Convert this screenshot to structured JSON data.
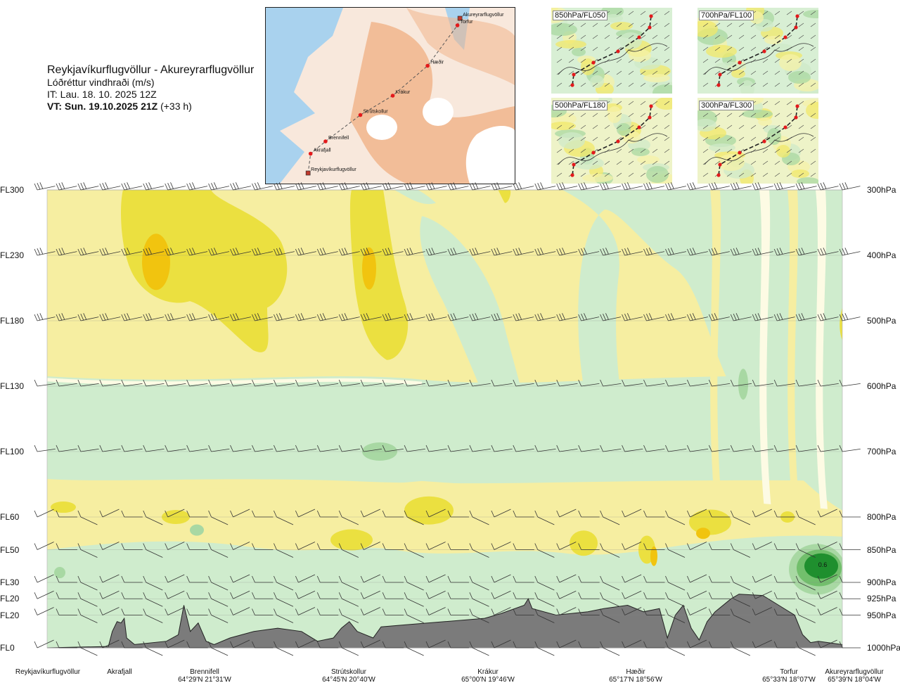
{
  "header": {
    "route": "Reykjavíkurflugvöllur - Akureyrarflugvöllur",
    "quantity": "Lóðréttur vindhraði (m/s)",
    "issue_time": "IT: Lau. 18. 10. 2025 12Z",
    "valid_label": "VT: Sun. 19.10.2025 21Z",
    "valid_offset": " (+33 h)"
  },
  "map": {
    "points": [
      {
        "name": "Akureyrarflugvöllur",
        "lx": 0.78,
        "ly": 0.06,
        "kind": "airport"
      },
      {
        "name": "Torfur",
        "lx": 0.77,
        "ly": 0.1,
        "kind": "point"
      },
      {
        "name": "Hæðir",
        "lx": 0.65,
        "ly": 0.33,
        "kind": "point"
      },
      {
        "name": "Krákur",
        "lx": 0.51,
        "ly": 0.5,
        "kind": "point"
      },
      {
        "name": "Strútskollur",
        "lx": 0.38,
        "ly": 0.61,
        "kind": "point"
      },
      {
        "name": "Brennifell",
        "lx": 0.24,
        "ly": 0.76,
        "kind": "point"
      },
      {
        "name": "Akrafjall",
        "lx": 0.18,
        "ly": 0.83,
        "kind": "point"
      },
      {
        "name": "Reykjavíkurflugvöllur",
        "lx": 0.17,
        "ly": 0.94,
        "kind": "airport"
      }
    ],
    "colors": {
      "sea": "#a9d2ee",
      "lowland": "#f8e8dc",
      "highland": "#f1b58c",
      "glacier": "#ffffff"
    }
  },
  "minimaps": [
    {
      "label": "850hPa/FL050"
    },
    {
      "label": "700hPa/FL100"
    },
    {
      "label": "500hPa/FL180"
    },
    {
      "label": "300hPa/FL300"
    }
  ],
  "chart_data": {
    "type": "heatmap",
    "variable": "vertical wind speed (m/s)",
    "levels": [
      {
        "fl": "FL300",
        "hpa": "300hPa",
        "y": 300
      },
      {
        "fl": "FL230",
        "hpa": "400hPa",
        "y": 400
      },
      {
        "fl": "FL180",
        "hpa": "500hPa",
        "y": 500
      },
      {
        "fl": "FL130",
        "hpa": "600hPa",
        "y": 600
      },
      {
        "fl": "FL100",
        "hpa": "700hPa",
        "y": 700
      },
      {
        "fl": "FL60",
        "hpa": "800hPa",
        "y": 800
      },
      {
        "fl": "FL50",
        "hpa": "850hPa",
        "y": 850
      },
      {
        "fl": "FL30",
        "hpa": "900hPa",
        "y": 900
      },
      {
        "fl": "FL20",
        "hpa": "925hPa",
        "y": 925
      },
      {
        "fl": "FL20",
        "hpa": "950hPa",
        "y": 950
      },
      {
        "fl": "FL0",
        "hpa": "1000hPa",
        "y": 1000
      }
    ],
    "stations": [
      {
        "name": "Reykjavíkurflugvöllur",
        "coord": "",
        "x": 0.0
      },
      {
        "name": "Akrafjall",
        "coord": "",
        "x": 0.09
      },
      {
        "name": "Brennifell",
        "coord": "64°29'N 21°31'W",
        "x": 0.19
      },
      {
        "name": "Strútskollur",
        "coord": "64°45'N 20°40'W",
        "x": 0.38
      },
      {
        "name": "Krákur",
        "coord": "65°00'N 19°46'W",
        "x": 0.57
      },
      {
        "name": "Hæðir",
        "coord": "65°17'N 18°56'W",
        "x": 0.75
      },
      {
        "name": "Torfur",
        "coord": "65°33'N 18°07'W",
        "x": 0.94
      },
      {
        "name": "Akureyrarflugvöllur",
        "coord": "65°39'N 18°04'W",
        "x": 1.0
      }
    ],
    "max_label": "0.6",
    "colors": {
      "strong_down": "#f1c40f",
      "mod_down": "#ebe040",
      "weak_down": "#f6eea1",
      "near_zero": "#fdfbe4",
      "weak_up": "#cfeccd",
      "mod_up": "#a8d8a3",
      "strong_up": "#72bf6c",
      "max_up": "#1f8f2e",
      "terrain": "#7b7b7b"
    }
  }
}
